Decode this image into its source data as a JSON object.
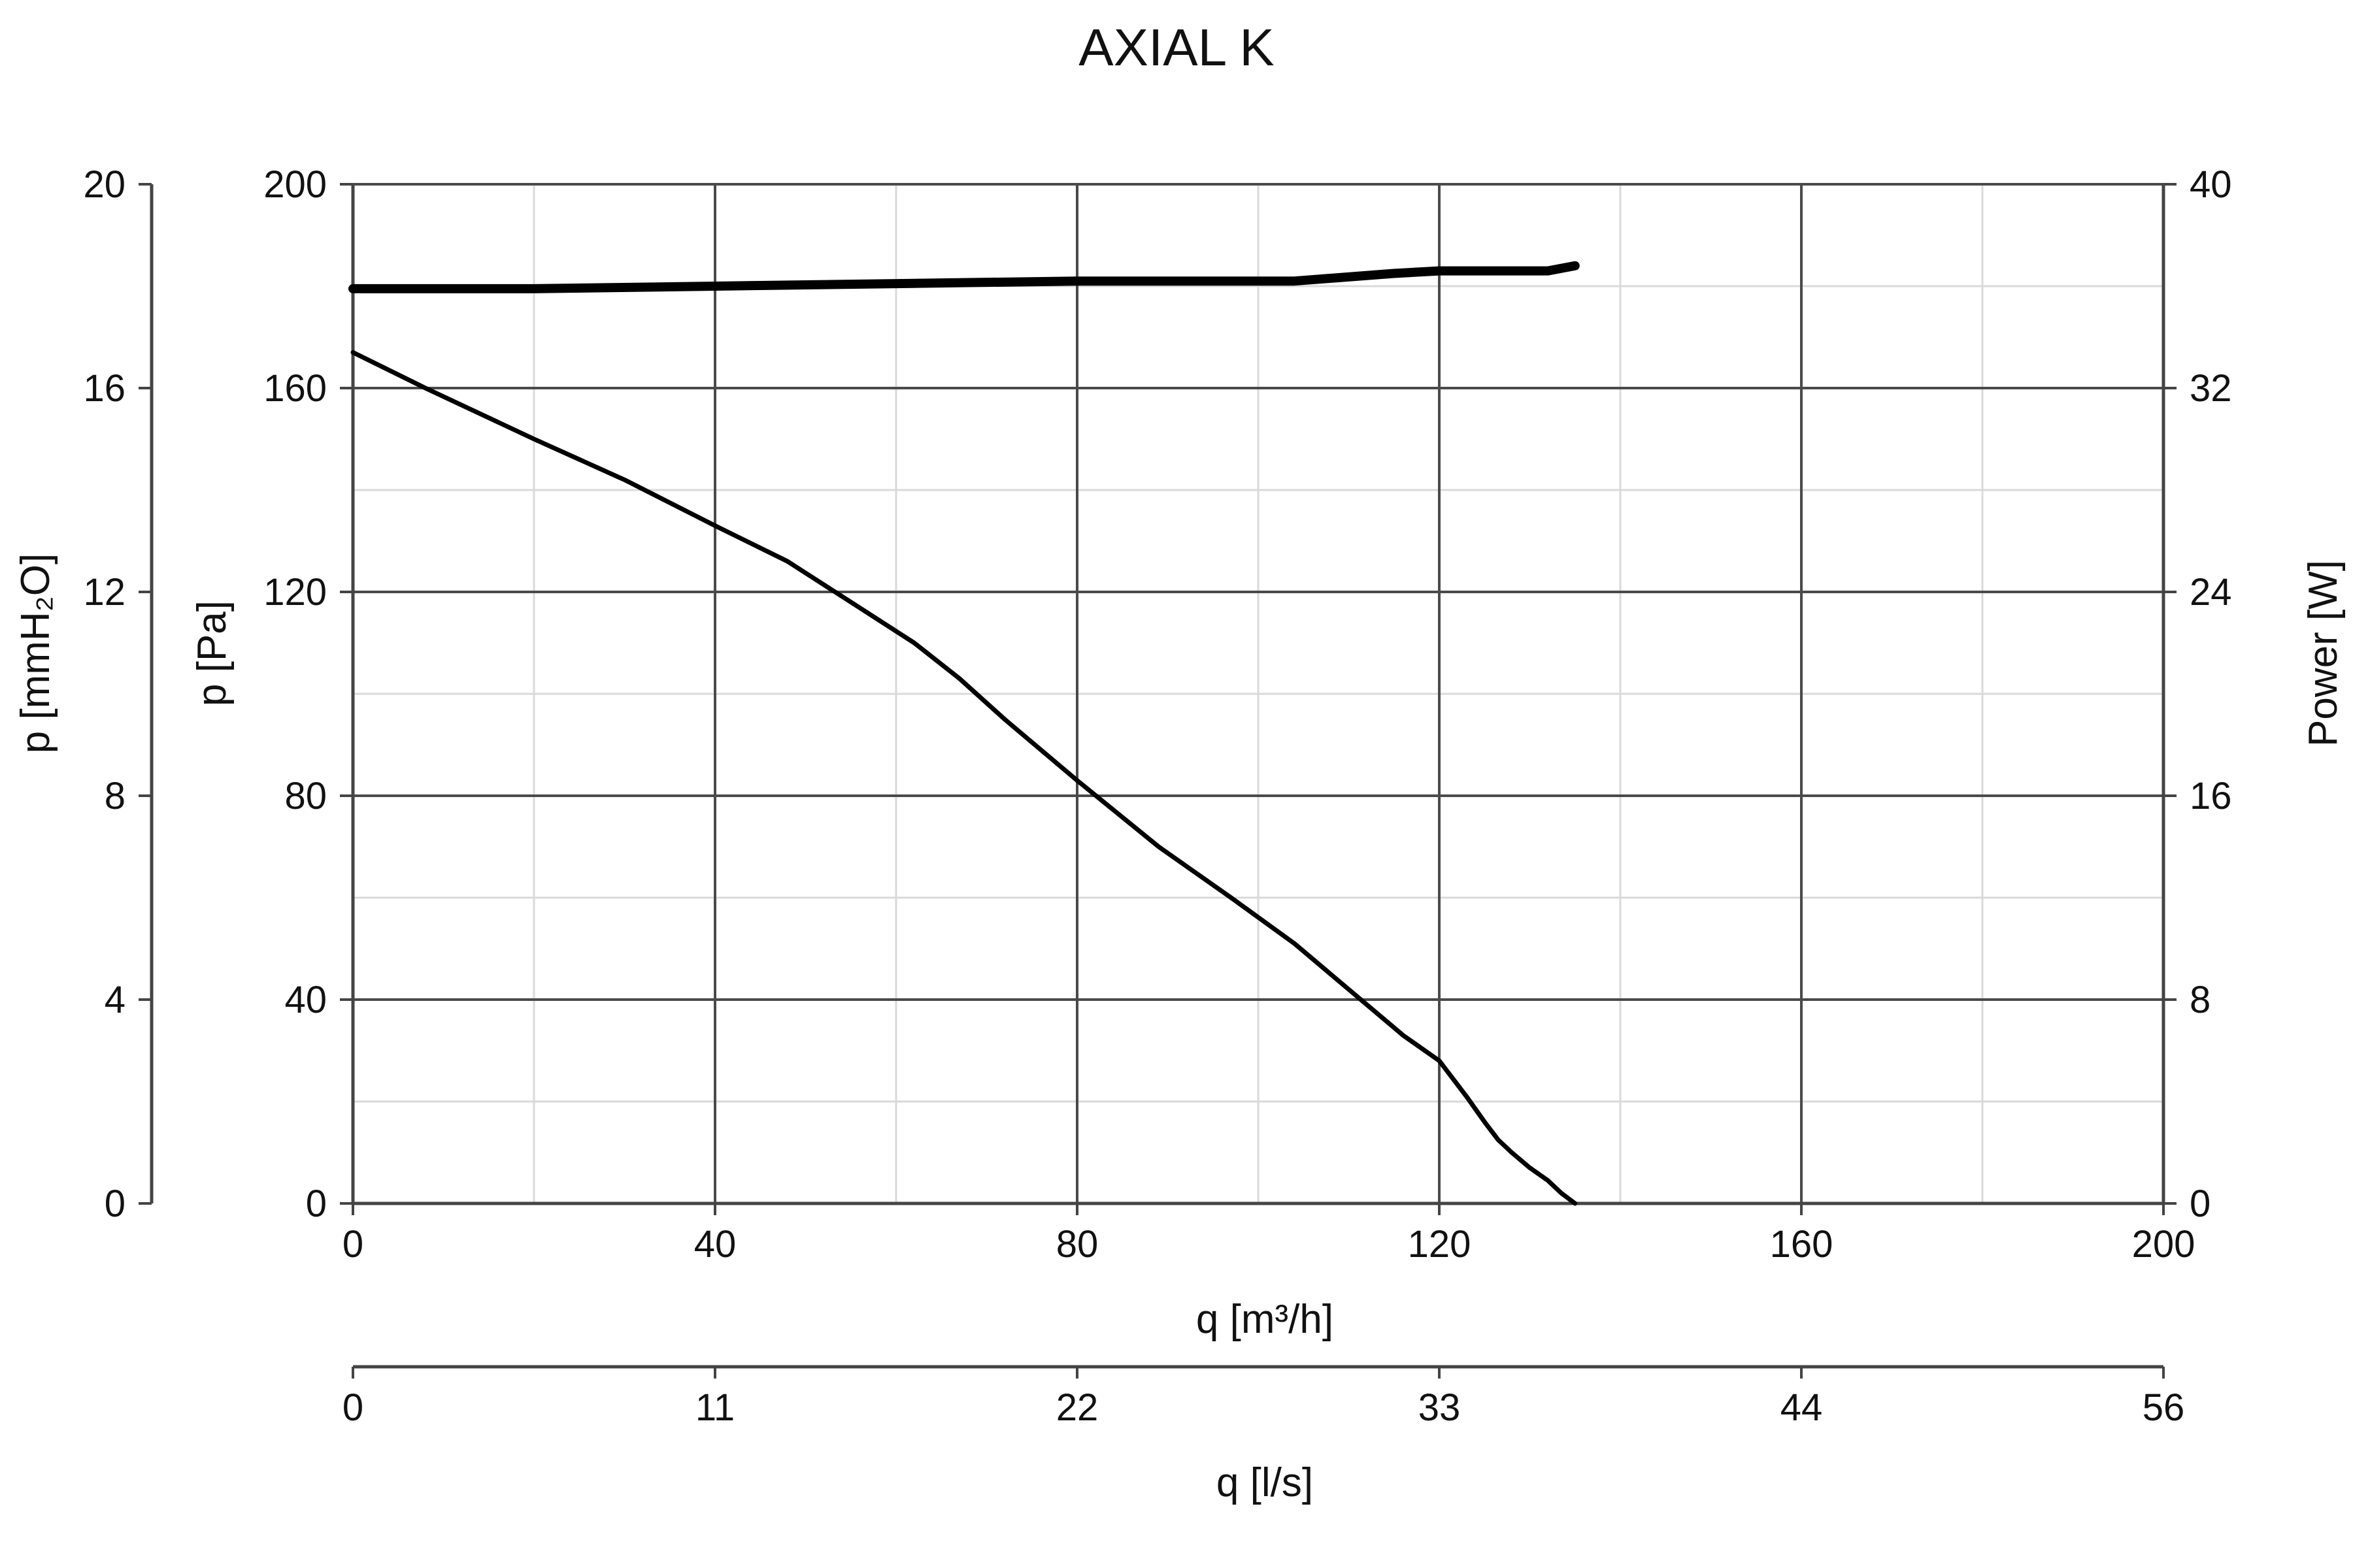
{
  "chart_data": {
    "type": "line",
    "title": "AXIAL K",
    "grid": true,
    "legend": "none",
    "x_axis": {
      "label": "q [m³/h]",
      "range": [
        0,
        200
      ],
      "ticks": [
        "0",
        "40",
        "80",
        "120",
        "160",
        "200"
      ]
    },
    "x2_axis": {
      "label": "q [l/s]",
      "range": [
        0,
        56
      ],
      "ticks": [
        "0",
        "11",
        "22",
        "33",
        "44",
        "56"
      ]
    },
    "y_axis": {
      "label": "p [Pa]",
      "range": [
        0,
        200
      ],
      "ticks": [
        "0",
        "40",
        "80",
        "120",
        "160",
        "200"
      ]
    },
    "y_outer_axis": {
      "label": "p [mmH₂O]",
      "range": [
        0,
        20
      ],
      "ticks": [
        "0",
        "4",
        "8",
        "12",
        "16",
        "20"
      ]
    },
    "y_right_axis": {
      "label": "Power [W]",
      "range": [
        0,
        40
      ],
      "ticks": [
        "0",
        "8",
        "16",
        "24",
        "32",
        "40"
      ]
    },
    "series": [
      {
        "axis": "y",
        "stroke_width": 7,
        "color": "#000000",
        "x": [
          0,
          8,
          20,
          30,
          40,
          48,
          55,
          62,
          67,
          72,
          80,
          89,
          97,
          104,
          112,
          116,
          120,
          123,
          125,
          126.5,
          128,
          130,
          132,
          133.5,
          135
        ],
        "y": [
          167,
          160,
          150,
          142,
          133,
          126,
          118,
          110,
          103,
          95,
          83,
          70,
          60,
          51,
          39,
          33,
          28,
          21,
          16,
          12.5,
          10,
          7,
          4.5,
          2,
          0
        ]
      },
      {
        "axis": "y_right",
        "stroke_width": 14,
        "color": "#000000",
        "x": [
          0,
          20,
          40,
          60,
          80,
          104,
          115,
          120,
          132,
          135
        ],
        "y": [
          35.9,
          35.9,
          36.0,
          36.1,
          36.2,
          36.2,
          36.5,
          36.6,
          36.6,
          36.8
        ]
      }
    ]
  }
}
